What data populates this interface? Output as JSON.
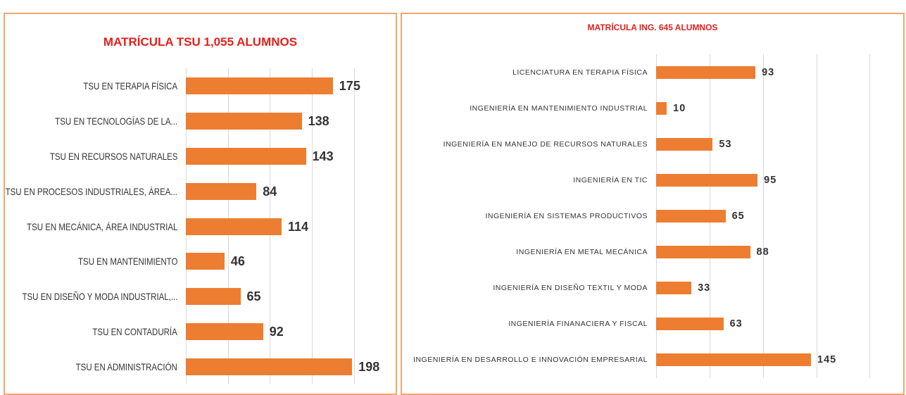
{
  "chart_data": [
    {
      "type": "bar",
      "orientation": "horizontal",
      "title": "MATRÍCULA TSU 1,055 ALUMNOS",
      "categories": [
        "TSU EN TERAPIA FÍSICA",
        "TSU EN TECNOLOGÍAS DE LA...",
        "TSU EN RECURSOS NATURALES",
        "TSU EN PROCESOS INDUSTRIALES, ÁREA...",
        "TSU EN MECÁNICA, ÁREA INDUSTRIAL",
        "TSU EN MANTENIMIENTO",
        "TSU EN DISEÑO Y MODA INDUSTRIAL,...",
        "TSU EN CONTADURÍA",
        "TSU EN ADMINISTRACIÓN"
      ],
      "values": [
        175,
        138,
        143,
        84,
        114,
        46,
        65,
        92,
        198
      ],
      "color": "#ed7d31",
      "xlim": [
        0,
        233
      ],
      "xticks": [
        0,
        50,
        100,
        150,
        200
      ],
      "grid": true
    },
    {
      "type": "bar",
      "orientation": "horizontal",
      "title": "MATRÍCULA ING. 645 ALUMNOS",
      "categories": [
        "LICENCIATURA EN TERAPIA FÍSICA",
        "INGENIERÍA EN MANTENIMIENTO INDUSTRIAL",
        "INGENIERÍA EN MANEJO DE RECURSOS NATURALES",
        "INGENIERÍA EN TIC",
        "INGENIERÍA EN SISTEMAS PRODUCTIVOS",
        "INGENIERÍA EN METAL MECÁNICA",
        "INGENIERÍA EN DISEÑO TEXTIL Y MODA",
        "INGENIERÍA FINANACIERA Y FISCAL",
        "INGENIERÍA EN DESARROLLO E INNOVACIÓN EMPRESARIAL"
      ],
      "values": [
        93,
        10,
        53,
        95,
        65,
        88,
        33,
        63,
        145
      ],
      "color": "#ed7d31",
      "xlim": [
        0,
        203
      ],
      "xticks": [
        0,
        50,
        100,
        150,
        200
      ],
      "grid": true
    }
  ]
}
